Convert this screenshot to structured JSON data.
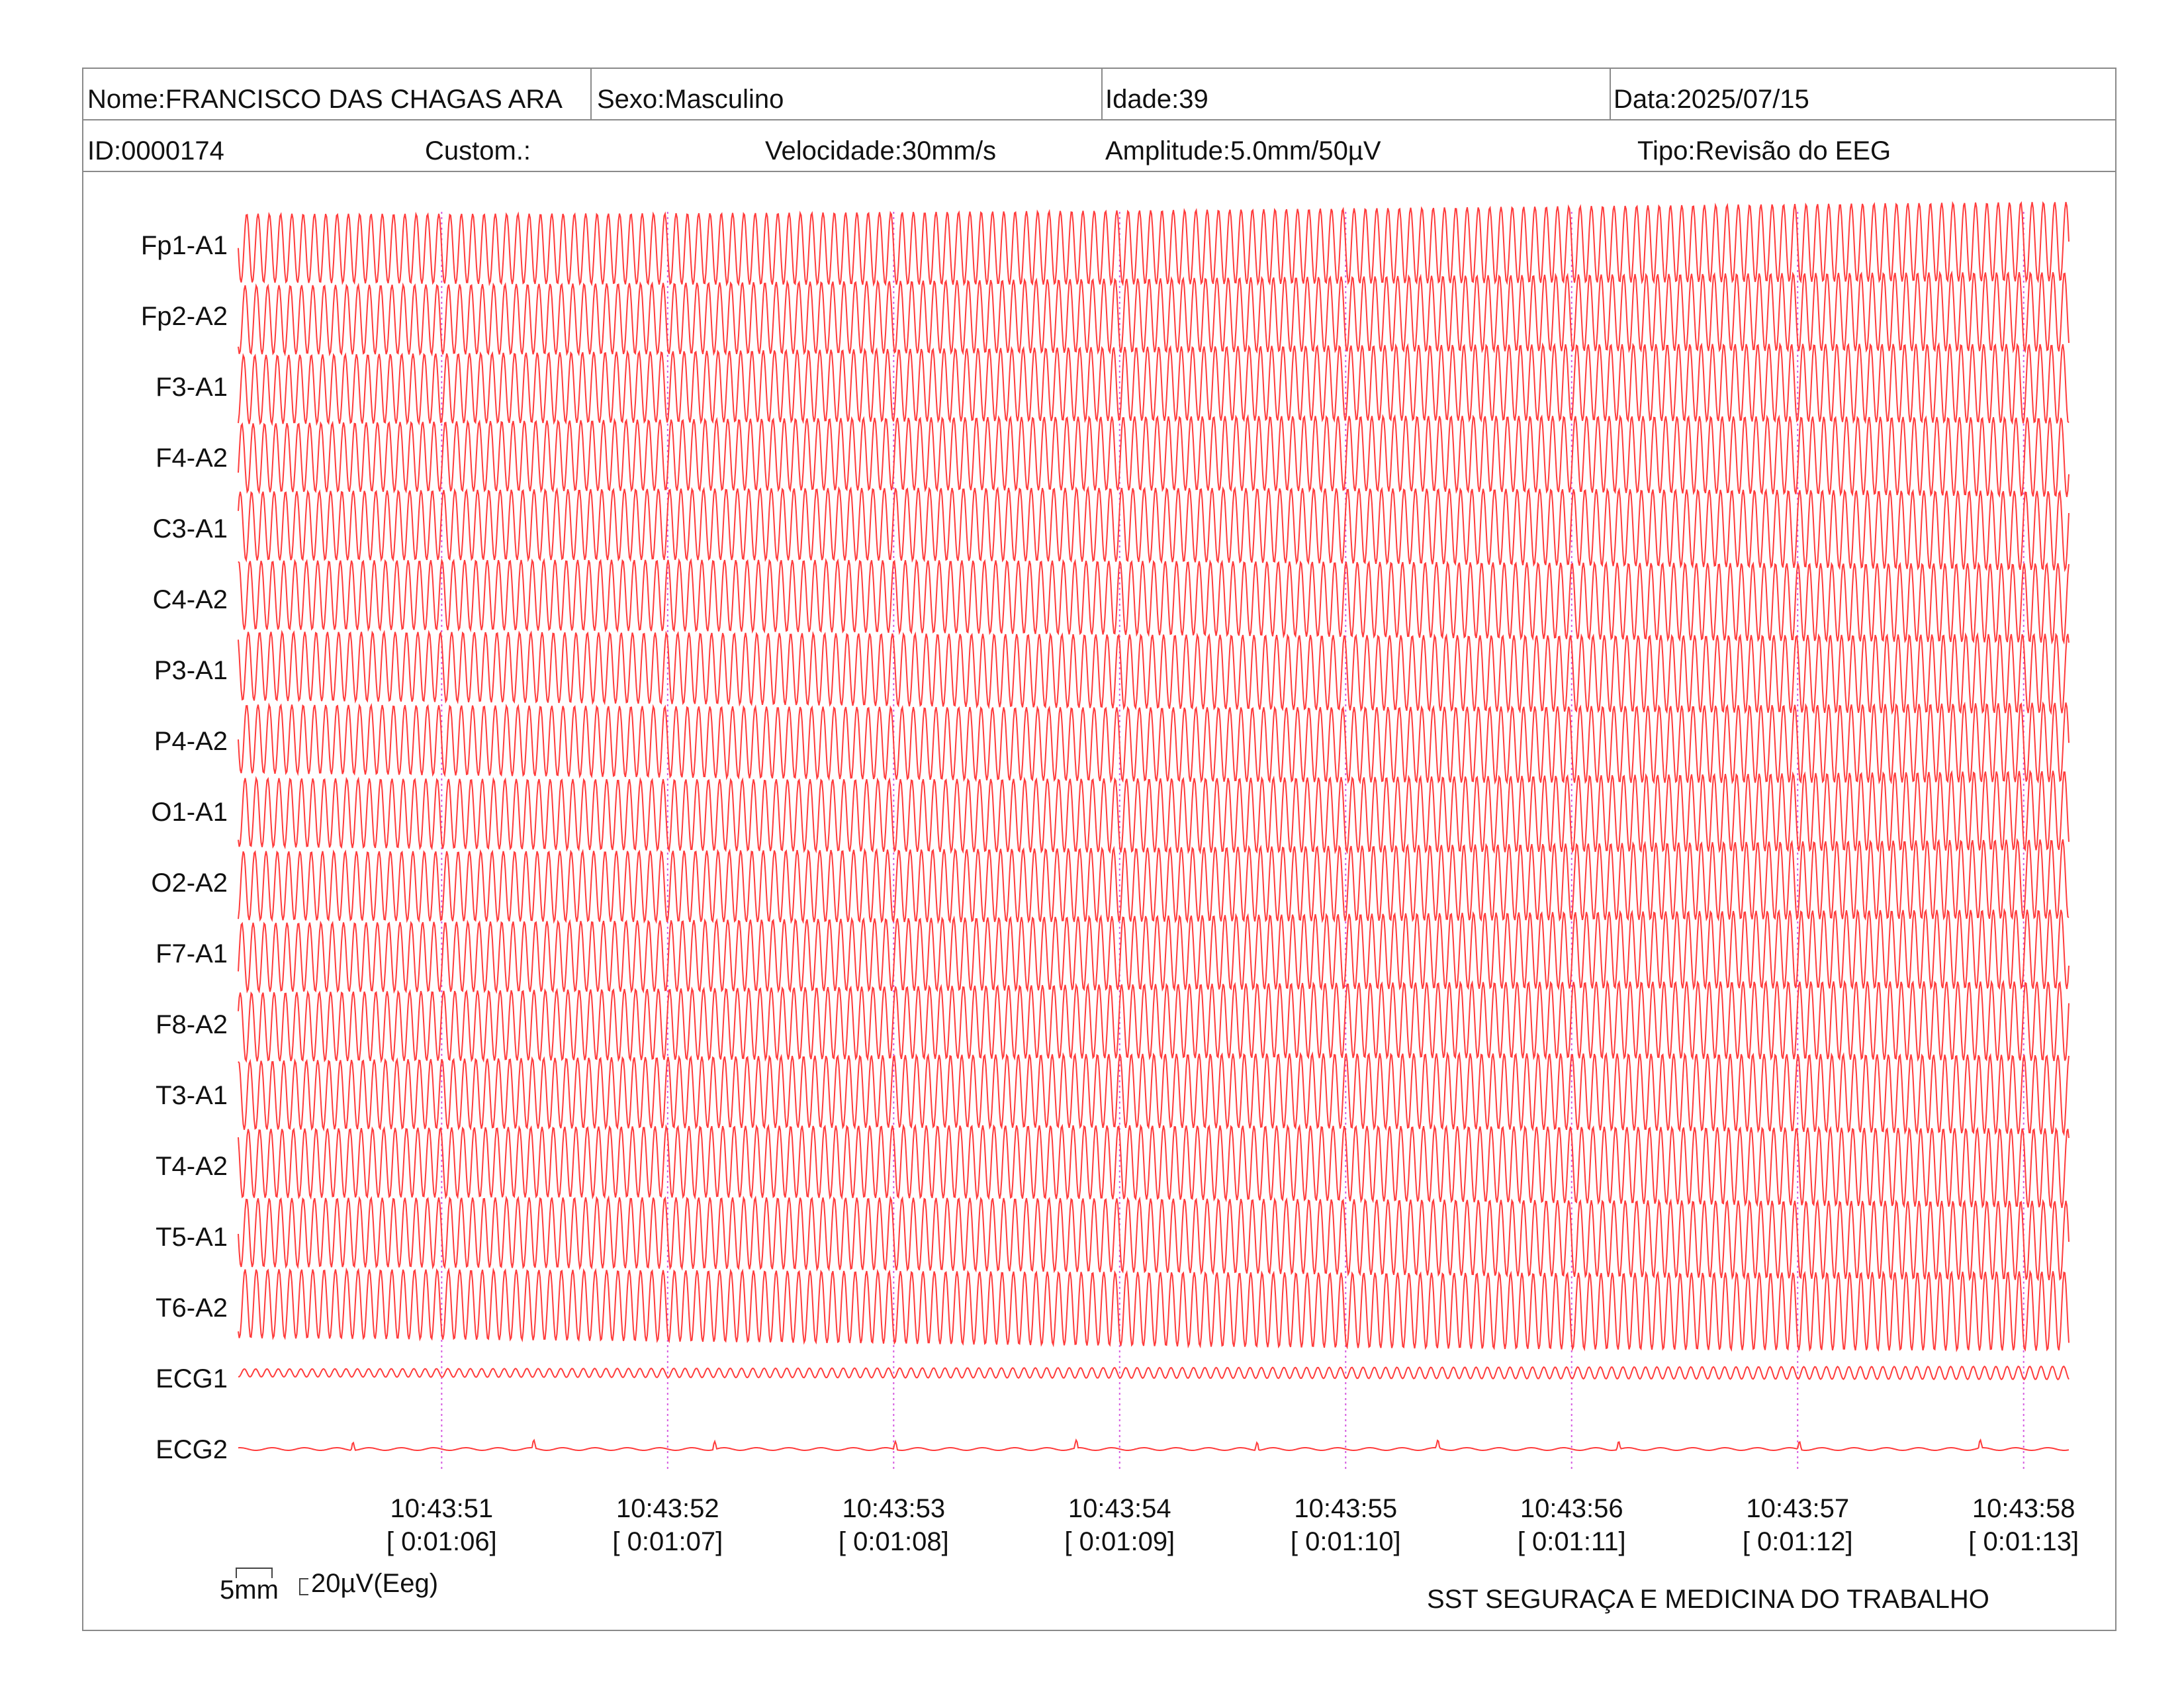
{
  "header": {
    "nome": "Nome:FRANCISCO DAS CHAGAS ARA",
    "sexo": "Sexo:Masculino",
    "idade": "Idade:39",
    "data": "Data:2025/07/15",
    "id": "ID:0000174",
    "custom": "Custom.:",
    "velocidade": "Velocidade:30mm/s",
    "amplitude": "Amplitude:5.0mm/50µV",
    "tipo": "Tipo:Revisão do EEG"
  },
  "footer": {
    "scale_mm": "5mm",
    "scale_uv": "20µV(Eeg)",
    "company": "SST SEGURAÇA E MEDICINA DO TRABALHO"
  },
  "colors": {
    "trace": "#ff3b3b",
    "marker": "#d65be0",
    "border": "#8a8a8a"
  },
  "chart_data": {
    "type": "line",
    "channels": [
      "Fp1-A1",
      "Fp2-A2",
      "F3-A1",
      "F4-A2",
      "C3-A1",
      "C4-A2",
      "P3-A1",
      "P4-A2",
      "O1-A1",
      "O2-A2",
      "F7-A1",
      "F8-A2",
      "T3-A1",
      "T4-A2",
      "T5-A1",
      "T6-A2",
      "ECG1",
      "ECG2"
    ],
    "time_labels": [
      "10:43:51",
      "10:43:52",
      "10:43:53",
      "10:43:54",
      "10:43:55",
      "10:43:56",
      "10:43:57",
      "10:43:58"
    ],
    "elapsed_labels": [
      "[ 0:01:06]",
      "[ 0:01:07]",
      "[ 0:01:08]",
      "[ 0:01:09]",
      "[ 0:01:10]",
      "[ 0:01:11]",
      "[ 0:01:12]",
      "[ 0:01:13]"
    ],
    "x_range_seconds": [
      65.1,
      73.2
    ],
    "eeg_oscillation_hz": 20,
    "grid": false
  }
}
